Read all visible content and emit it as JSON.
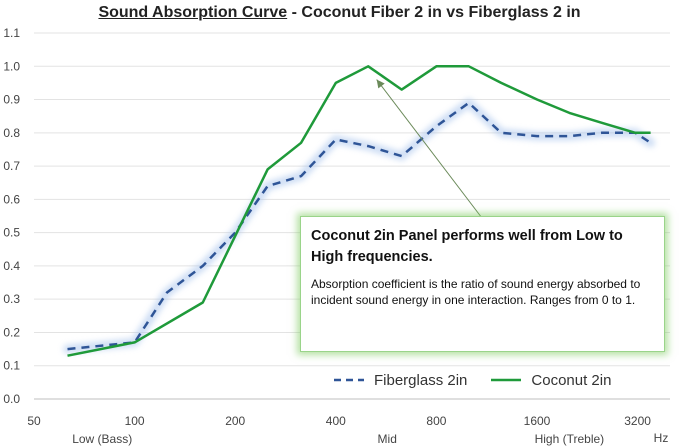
{
  "chart_data": {
    "type": "line",
    "title_part1": "Sound Absorption Curve",
    "title_part2": " - Coconut Fiber 2 in vs Fiberglass 2 in",
    "xscale": "log2",
    "xlim": [
      50,
      4000
    ],
    "ylim": [
      0,
      1.1
    ],
    "yticks": [
      0.0,
      0.1,
      0.2,
      0.3,
      0.4,
      0.5,
      0.6,
      0.7,
      0.8,
      0.9,
      1.0,
      1.1
    ],
    "yticklabels": [
      "0.0",
      "0.1",
      "0.2",
      "0.3",
      "0.4",
      "0.5",
      "0.6",
      "0.7",
      "0.8",
      "0.9",
      "1.0",
      "1.1"
    ],
    "xticks": [
      50,
      100,
      200,
      400,
      800,
      1600,
      3200
    ],
    "xticklabels": [
      "50",
      "100",
      "200",
      "400",
      "800",
      "1600",
      "3200"
    ],
    "xunit": "Hz",
    "range_labels": [
      {
        "text": "Low (Bass)",
        "x": 80
      },
      {
        "text": "Mid",
        "x": 570
      },
      {
        "text": "High (Treble)",
        "x": 2000
      }
    ],
    "grid": "horizontal",
    "legend_position": "bottom-right",
    "series": [
      {
        "name": "Fiberglass 2in",
        "style": "dashed",
        "color": "#2f5597",
        "x": [
          63,
          100,
          125,
          160,
          200,
          250,
          315,
          400,
          500,
          630,
          800,
          1000,
          1250,
          1600,
          2000,
          2500,
          3150,
          3500
        ],
        "y": [
          0.15,
          0.17,
          0.32,
          0.4,
          0.5,
          0.64,
          0.67,
          0.78,
          0.76,
          0.73,
          0.82,
          0.89,
          0.8,
          0.79,
          0.79,
          0.8,
          0.8,
          0.77
        ]
      },
      {
        "name": "Coconut 2in",
        "style": "solid",
        "color": "#1f9a3a",
        "x": [
          63,
          100,
          160,
          250,
          315,
          400,
          500,
          630,
          800,
          1000,
          1250,
          1600,
          2000,
          2500,
          3150,
          3500
        ],
        "y": [
          0.13,
          0.17,
          0.29,
          0.69,
          0.77,
          0.95,
          1.0,
          0.93,
          1.0,
          1.0,
          0.95,
          0.9,
          0.86,
          0.83,
          0.8,
          0.8
        ]
      }
    ],
    "annotation": {
      "heading": "Coconut 2in Panel performs well from Low to High frequencies.",
      "body": "Absorption coefficient is the ratio of sound energy absorbed to incident sound energy in one interaction. Ranges from 0 to 1.",
      "arrow_points_to": {
        "x": 530,
        "y": 0.96
      }
    }
  }
}
